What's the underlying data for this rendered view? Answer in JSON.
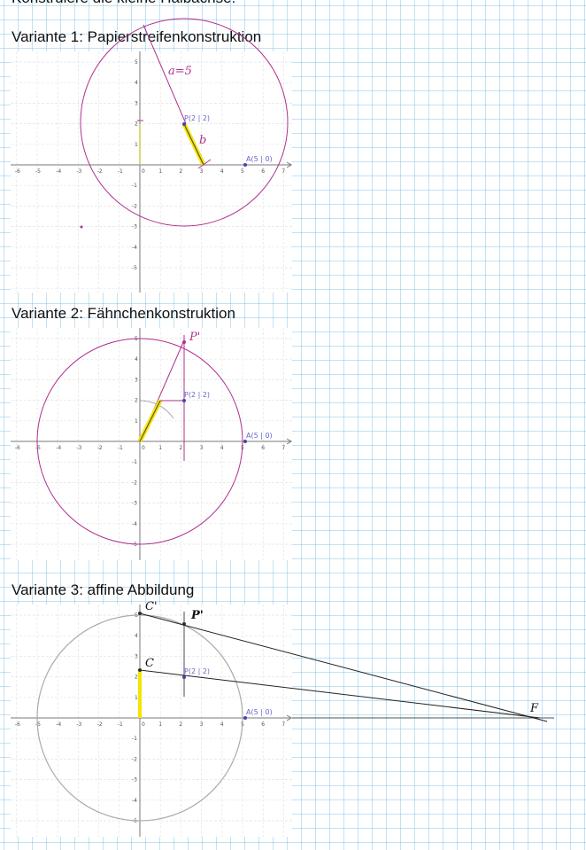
{
  "header_partial": "Konstruiere die kleine Halbachse!",
  "variants": [
    {
      "heading": "Variante 1: Papierstreifenkonstruktion",
      "point_P": "P(2 | 2)",
      "point_A": "A(5 | 0)",
      "annotations": [
        "a=5",
        "b"
      ]
    },
    {
      "heading": "Variante 2: Fähnchenkonstruktion",
      "point_P": "P(2 | 2)",
      "point_A": "A(5 | 0)",
      "annotations": [
        "P'"
      ]
    },
    {
      "heading": "Variante 3: affine Abbildung",
      "point_P": "P(2 | 2)",
      "point_A": "A(5 | 0)",
      "annotations": [
        "C'",
        "P'",
        "C",
        "F"
      ]
    }
  ],
  "axis_x_ticks": [
    "-6",
    "-5",
    "-4",
    "-3",
    "-2",
    "-1",
    "0",
    "1",
    "2",
    "3",
    "4",
    "5",
    "6",
    "7"
  ],
  "axis_y_ticks": [
    "5",
    "4",
    "3",
    "2",
    "1",
    "-1",
    "-2",
    "-3",
    "-4",
    "-5"
  ],
  "colors": {
    "ellipse_circle": "#b0308f",
    "highlight": "#f5e400",
    "gray_circle": "#aaaaaa",
    "point_label": "#6666cc"
  }
}
